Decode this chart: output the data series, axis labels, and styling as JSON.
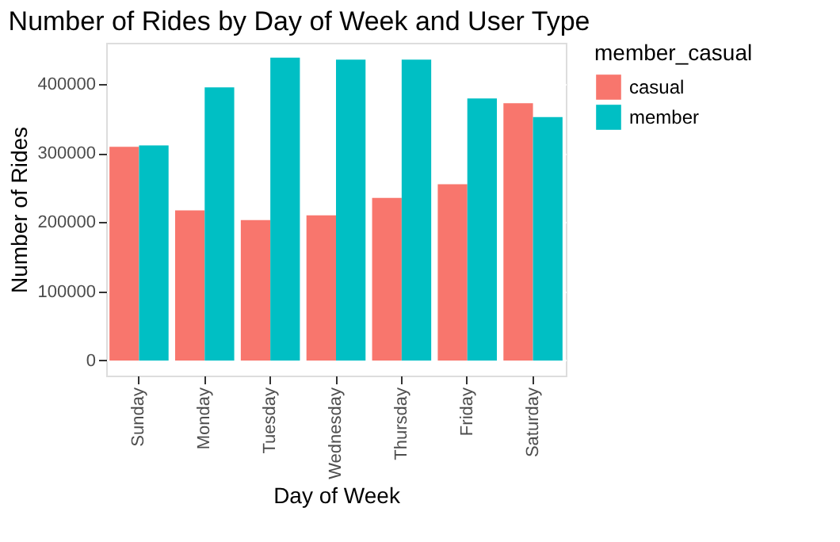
{
  "chart_data": {
    "type": "bar",
    "title": "Number of Rides by Day of Week and User Type",
    "xlabel": "Day of Week",
    "ylabel": "Number of Rides",
    "legend_title": "member_casual",
    "legend": "right",
    "grid": true,
    "categories": [
      "Sunday",
      "Monday",
      "Tuesday",
      "Wednesday",
      "Thursday",
      "Friday",
      "Saturday"
    ],
    "series": [
      {
        "name": "casual",
        "color": "#f8766d",
        "values": [
          309000,
          217000,
          203000,
          210000,
          235000,
          255000,
          372000
        ]
      },
      {
        "name": "member",
        "color": "#00bfc4",
        "values": [
          311000,
          395000,
          438000,
          435000,
          435000,
          379000,
          352000
        ]
      }
    ],
    "ylim": [
      -21880,
      459480
    ],
    "yticks": [
      0,
      100000,
      200000,
      300000,
      400000
    ]
  }
}
